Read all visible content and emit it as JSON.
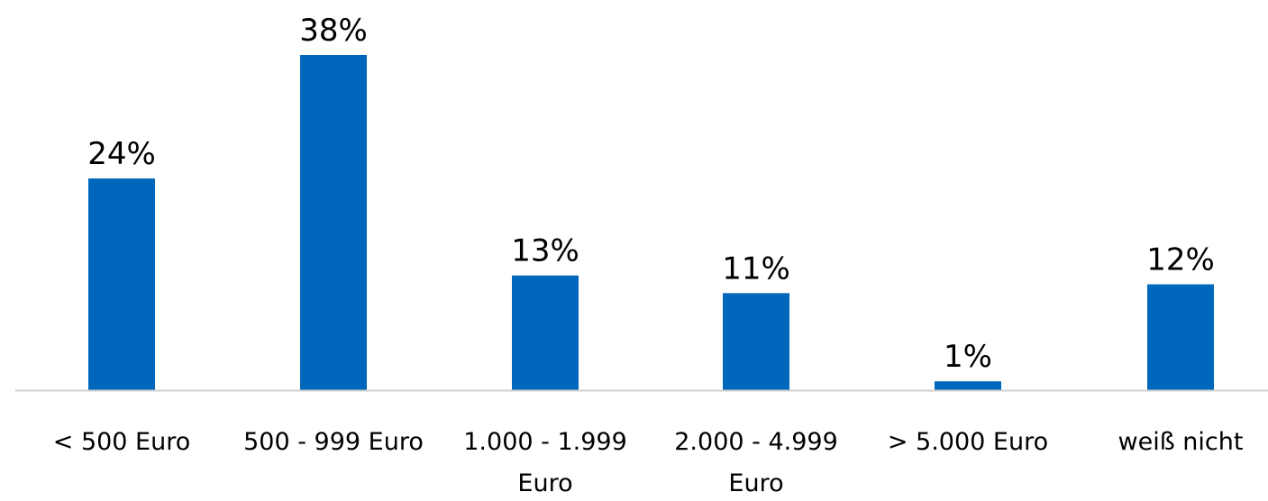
{
  "chart_data": {
    "type": "bar",
    "categories": [
      [
        "< 500 Euro"
      ],
      [
        "500 - 999 Euro"
      ],
      [
        "1.000 - 1.999",
        "Euro"
      ],
      [
        "2.000 - 4.999",
        "Euro"
      ],
      [
        "> 5.000 Euro"
      ],
      [
        "weiß nicht"
      ]
    ],
    "values": [
      24,
      38,
      13,
      11,
      1,
      12
    ],
    "data_labels": [
      "24%",
      "38%",
      "13%",
      "11%",
      "1%",
      "12%"
    ],
    "unit": "%",
    "ylim": [
      0,
      38
    ],
    "grid": false,
    "legend": "none",
    "bar_color": "#0068BC",
    "axis_color": "#D0D0D0"
  }
}
